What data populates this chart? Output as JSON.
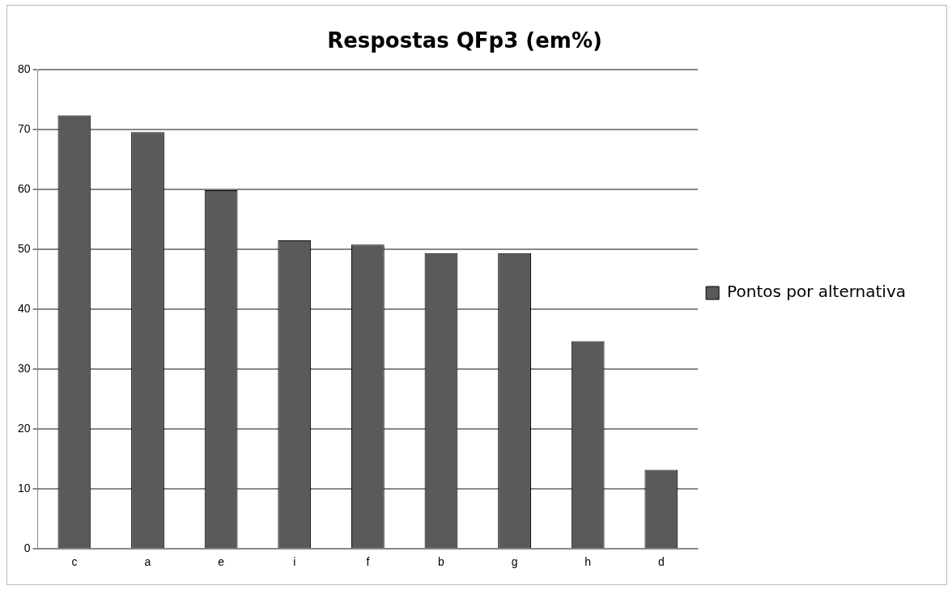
{
  "chart_data": {
    "type": "bar",
    "title": "Respostas QFp3 (em%)",
    "categories": [
      "c",
      "a",
      "e",
      "i",
      "f",
      "b",
      "g",
      "h",
      "d"
    ],
    "series": [
      {
        "name": "Pontos por alternativa",
        "color": "#5a5a5a",
        "values": [
          72.4,
          69.6,
          59.9,
          51.5,
          50.8,
          49.4,
          49.4,
          34.7,
          13.2
        ]
      }
    ],
    "ylim": [
      0,
      80
    ],
    "yticks": [
      0,
      10,
      20,
      30,
      40,
      50,
      60,
      70,
      80
    ],
    "grid": "y",
    "legend": "right"
  }
}
